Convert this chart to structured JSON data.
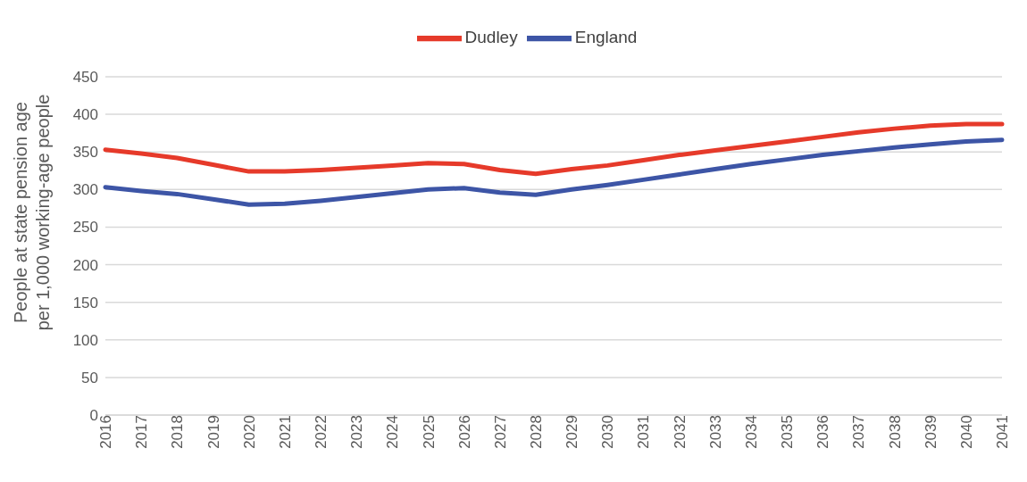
{
  "chart_data": {
    "type": "line",
    "ylabel": "People at state pension age per 1,000 working-age people",
    "categories": [
      "2016",
      "2017",
      "2018",
      "2019",
      "2020",
      "2021",
      "2022",
      "2023",
      "2024",
      "2025",
      "2026",
      "2027",
      "2028",
      "2029",
      "2030",
      "2031",
      "2032",
      "2033",
      "2034",
      "2035",
      "2036",
      "2037",
      "2038",
      "2039",
      "2040",
      "2041"
    ],
    "series": [
      {
        "name": "Dudley",
        "color": "#e63a2a",
        "values": [
          353,
          348,
          342,
          333,
          324,
          324,
          326,
          329,
          332,
          335,
          334,
          326,
          321,
          327,
          332,
          339,
          346,
          352,
          358,
          364,
          370,
          376,
          381,
          385,
          387,
          387
        ]
      },
      {
        "name": "England",
        "color": "#3d55a6",
        "values": [
          303,
          298,
          294,
          287,
          280,
          281,
          285,
          290,
          295,
          300,
          302,
          296,
          293,
          300,
          306,
          313,
          320,
          327,
          334,
          340,
          346,
          351,
          356,
          360,
          364,
          366
        ]
      }
    ],
    "ylim": [
      0,
      450
    ],
    "yticks": [
      0,
      50,
      100,
      150,
      200,
      250,
      300,
      350,
      400,
      450
    ],
    "grid": "y",
    "legend": "top",
    "marker": "none",
    "line_style": "solid"
  }
}
